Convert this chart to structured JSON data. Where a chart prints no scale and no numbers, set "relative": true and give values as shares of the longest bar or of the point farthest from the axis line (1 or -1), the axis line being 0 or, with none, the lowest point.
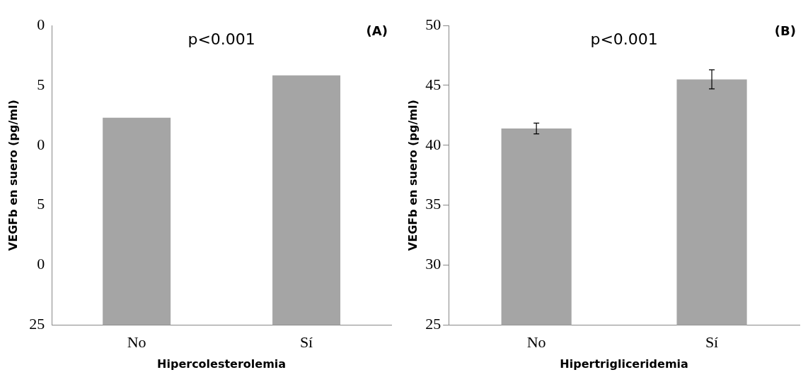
{
  "chart_data": [
    {
      "type": "bar",
      "relative": true,
      "title": "(A)",
      "annotations": [
        "p<0.001",
        "0",
        "5",
        "0",
        "5",
        "0",
        "25"
      ],
      "xlabel": "Hipercolesterolemia",
      "ylabel": "VEGFb en suero (pg/ml)",
      "categories": [
        "No",
        "Sí"
      ],
      "values": [
        0.83,
        1
      ],
      "color": "#a5a5a5",
      "grid": false
    },
    {
      "type": "bar",
      "title": "(B)",
      "annotations": [
        "p<0.001"
      ],
      "xlabel": "Hipertrigliceridemia",
      "ylabel": "VEGFb en suero (pg/ml)",
      "categories": [
        "No",
        "Sí"
      ],
      "values": [
        41.4,
        45.5
      ],
      "errors": [
        0.45,
        0.8
      ],
      "color": "#a5a5a5",
      "ylim": [
        25,
        50
      ],
      "yticks": [
        25,
        30,
        35,
        40,
        45,
        50
      ],
      "grid": false
    }
  ]
}
